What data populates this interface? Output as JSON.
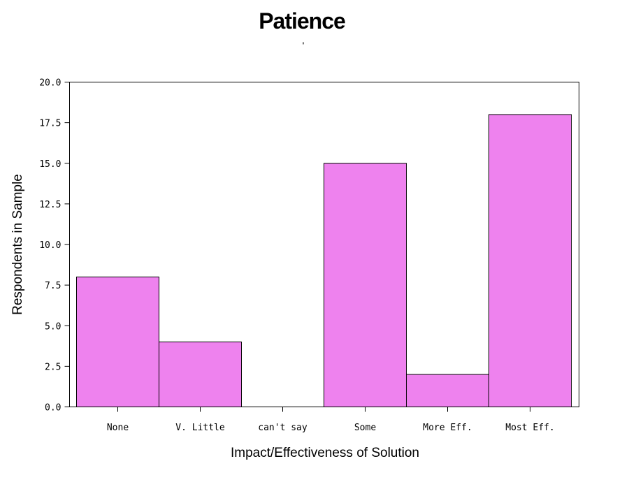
{
  "chart_data": {
    "type": "bar",
    "title": "Patience",
    "subtitle": "'",
    "xlabel": "Impact/Effectiveness of Solution",
    "ylabel": "Respondents in Sample",
    "categories": [
      "None",
      "V. Little",
      "can't say",
      "Some",
      "More Eff.",
      "Most Eff."
    ],
    "values": [
      8,
      4,
      0,
      15,
      2,
      18
    ],
    "ylim": [
      0,
      20
    ],
    "yticks": [
      "0.0",
      "2.5",
      "5.0",
      "7.5",
      "10.0",
      "12.5",
      "15.0",
      "17.5",
      "20.0"
    ],
    "grid": false,
    "legend": "none",
    "bar_color": "#EE82EE"
  }
}
